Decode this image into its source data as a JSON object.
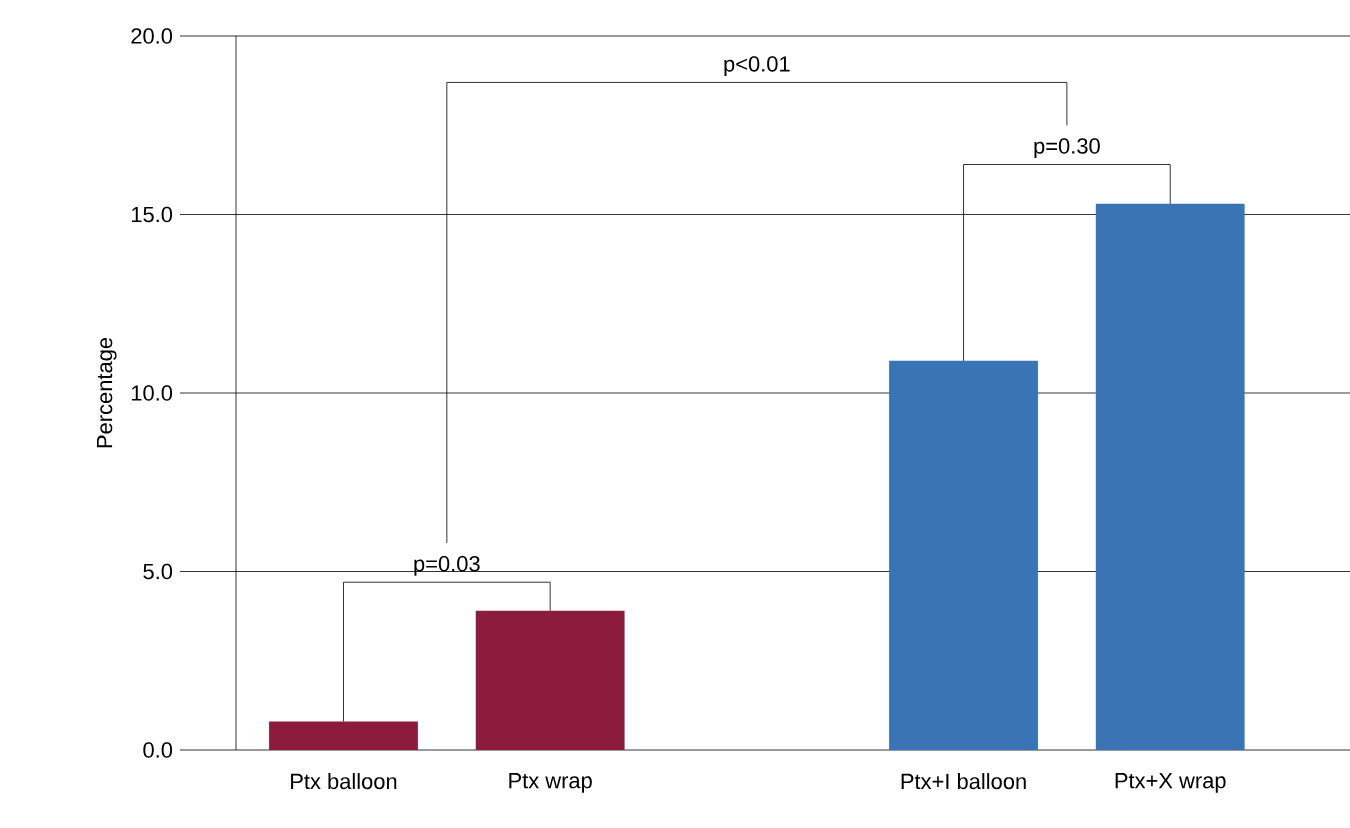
{
  "chart_data": {
    "type": "bar",
    "ylabel": "Percentage",
    "categories": [
      "Ptx balloon",
      "Ptx wrap",
      null,
      "Ptx+I balloon",
      "Ptx+X wrap"
    ],
    "values": [
      0.8,
      3.9,
      null,
      10.9,
      15.3
    ],
    "colors": [
      "#8c1c3e",
      "#8c1c3e",
      "#3a74b4",
      "#3a74b4",
      "#3a74b4"
    ],
    "ylim": [
      0,
      20
    ],
    "yticks": [
      {
        "value": 0,
        "label": "0.0"
      },
      {
        "value": 5,
        "label": "5.0"
      },
      {
        "value": 10,
        "label": "10.0"
      },
      {
        "value": 15,
        "label": "15.0"
      },
      {
        "value": 20,
        "label": "20.0"
      }
    ],
    "grid": "y",
    "annotations": [
      "p=0.03",
      "p<0.01",
      "p=0.30"
    ]
  }
}
